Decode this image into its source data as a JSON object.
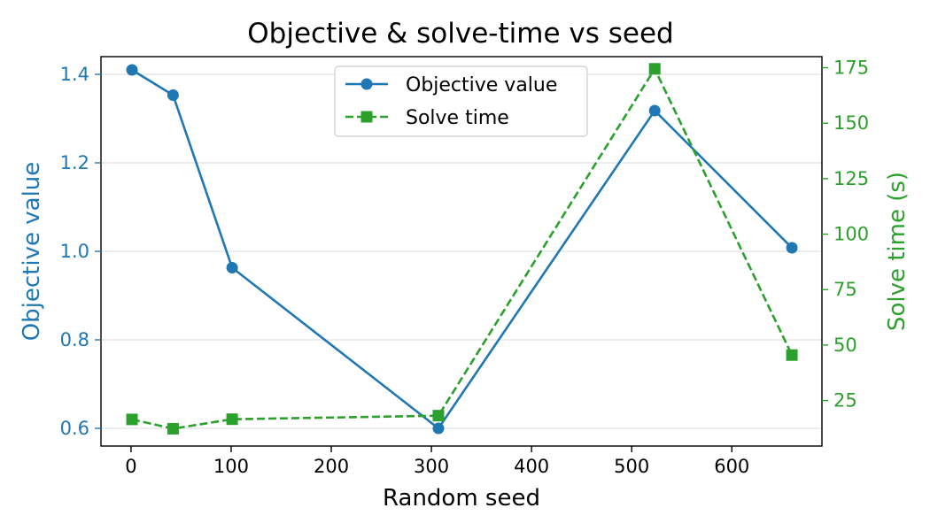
{
  "chart_data": {
    "type": "line",
    "title": "Objective & solve-time vs seed",
    "xlabel": "Random seed",
    "ylabel_left": "Objective value",
    "ylabel_right": "Solve time (s)",
    "xlim": [
      -30,
      690
    ],
    "ylim_left": [
      0.56,
      1.44
    ],
    "ylim_right": [
      4.5,
      180
    ],
    "x_ticks": [
      0,
      100,
      200,
      300,
      400,
      500,
      600
    ],
    "y_left_ticks": [
      0.6,
      0.8,
      1.0,
      1.2,
      1.4
    ],
    "y_left_tick_labels": [
      "0.6",
      "0.8",
      "1.0",
      "1.2",
      "1.4"
    ],
    "y_right_ticks": [
      25,
      50,
      75,
      100,
      125,
      150,
      175
    ],
    "grid": "horizontal",
    "legend_position": "top-center",
    "series": [
      {
        "name": "Objective value",
        "axis": "left",
        "style": "solid",
        "marker": "circle",
        "color": "#1f77b4",
        "x": [
          1,
          42,
          101,
          307,
          523,
          660
        ],
        "values": [
          1.41,
          1.353,
          0.963,
          0.6,
          1.318,
          1.008
        ]
      },
      {
        "name": "Solve time",
        "axis": "right",
        "style": "dashed",
        "marker": "square",
        "color": "#2ca02c",
        "x": [
          1,
          42,
          101,
          307,
          523,
          660
        ],
        "values": [
          16.5,
          12.3,
          16.6,
          18.2,
          174.5,
          45.5
        ]
      }
    ]
  }
}
